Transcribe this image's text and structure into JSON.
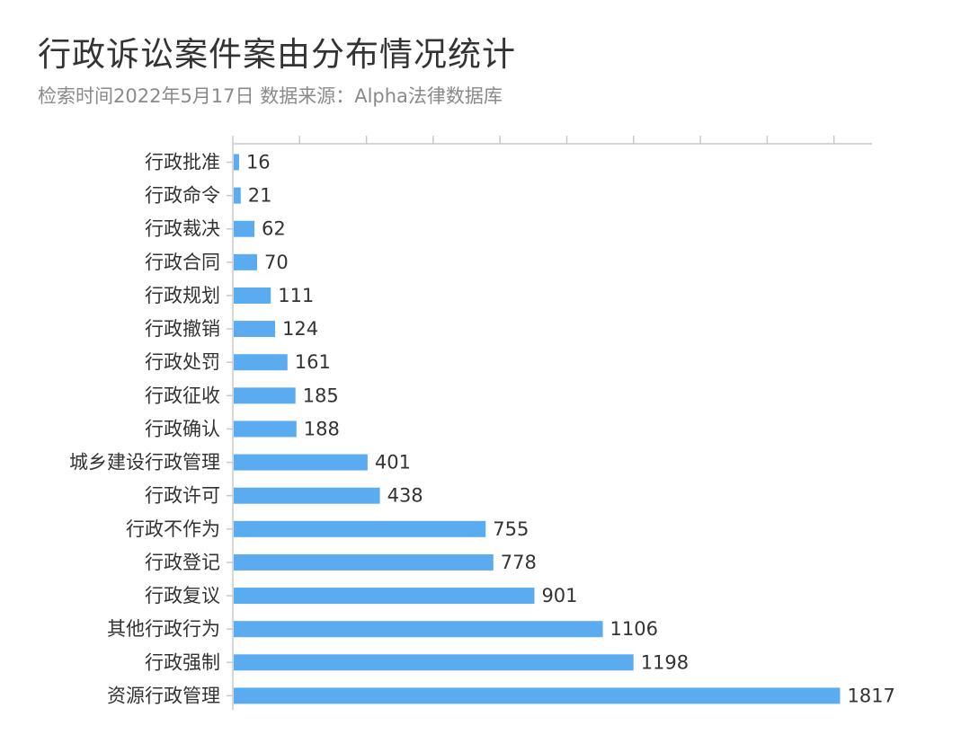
{
  "chart_data": {
    "type": "bar",
    "orientation": "horizontal",
    "title": "行政诉讼案件案由分布情况统计",
    "subtitle": "检索时间2022年5月17日 数据来源：Alpha法律数据库",
    "categories": [
      "行政批准",
      "行政命令",
      "行政裁决",
      "行政合同",
      "行政规划",
      "行政撤销",
      "行政处罚",
      "行政征收",
      "行政确认",
      "城乡建设行政管理",
      "行政许可",
      "行政不作为",
      "行政登记",
      "行政复议",
      "其他行政行为",
      "行政强制",
      "资源行政管理"
    ],
    "values": [
      16,
      21,
      62,
      70,
      111,
      124,
      161,
      185,
      188,
      401,
      438,
      755,
      778,
      901,
      1106,
      1198,
      1817
    ],
    "xlim": [
      0,
      1900
    ],
    "grid": false,
    "legend": "none",
    "colors": {
      "bar": "#5aabf0",
      "axis": "#c8c8c8",
      "title": "#333333",
      "subtitle": "#8a8a8a",
      "label": "#333333"
    }
  }
}
